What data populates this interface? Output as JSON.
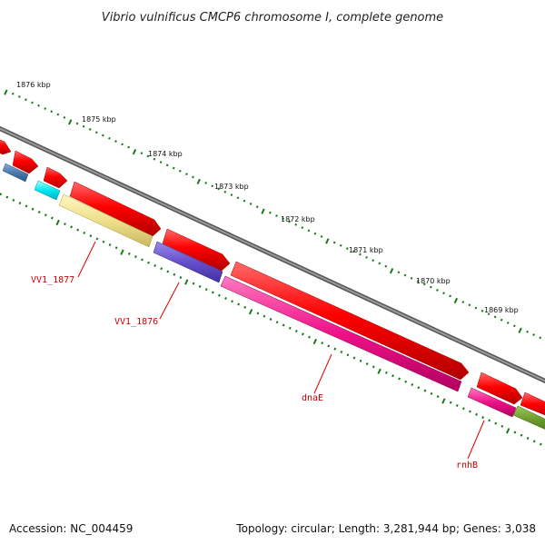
{
  "title": "Vibrio vulnificus CMCP6 chromosome I, complete genome",
  "footer": {
    "accession": "Accession: NC_004459",
    "summary": "Topology: circular; Length: 3,281,944 bp; Genes: 3,038"
  },
  "scale_labels": [
    "1876 kbp",
    "1875 kbp",
    "1874 kbp",
    "1873 kbp",
    "1872 kbp",
    "1871 kbp",
    "1870 kbp",
    "1869 kbp"
  ],
  "gene_labels": [
    "VV1_1877",
    "VV1_1876",
    "dnaE",
    "rnhB"
  ],
  "colors": {
    "backbone": "#7a7a7a",
    "cds_arrow": "#ee0000",
    "scale_tick": "#1a7a1a",
    "label_red": "#cc0000",
    "gene_magenta": "#ee1188",
    "gene_khaki": "#eee08a",
    "gene_slate": "#6650cc",
    "gene_cyan": "#00e8f0",
    "gene_steel": "#4a7aaa",
    "gene_olive": "#6a9a2a"
  }
}
